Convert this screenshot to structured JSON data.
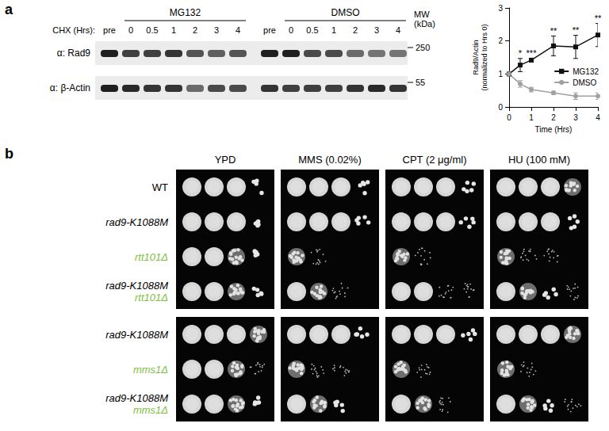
{
  "chart_data": {
    "type": "line",
    "xlabel": "Time (Hrs)",
    "ylabel": "Rad9/Actin (normalized to Hrs 0)",
    "x": [
      0,
      0.5,
      1,
      2,
      3,
      4
    ],
    "series": [
      {
        "name": "MG132",
        "color": "#111111",
        "marker": "square",
        "values": [
          1,
          1.27,
          1.42,
          1.85,
          1.82,
          2.18
        ],
        "errors": [
          0,
          0.2,
          0.05,
          0.3,
          0.35,
          0.35
        ]
      },
      {
        "name": "DMSO",
        "color": "#a0a0a0",
        "marker": "circle",
        "values": [
          1,
          0.7,
          0.53,
          0.43,
          0.33,
          0.33
        ],
        "errors": [
          0,
          0.1,
          0.07,
          0.05,
          0.1,
          0.1
        ]
      }
    ],
    "annotations": [
      {
        "series": "MG132",
        "x": 0.5,
        "text": "*"
      },
      {
        "series": "MG132",
        "x": 1,
        "text": "***"
      },
      {
        "series": "MG132",
        "x": 2,
        "text": "**"
      },
      {
        "series": "MG132",
        "x": 3,
        "text": "**"
      },
      {
        "series": "MG132",
        "x": 4,
        "text": "**"
      }
    ],
    "xlim": [
      0,
      4
    ],
    "xticks": [
      0,
      1,
      2,
      3,
      4
    ],
    "ylim": [
      0,
      3
    ],
    "yticks": [
      0,
      1,
      2,
      3
    ],
    "grid": false,
    "legend": "right"
  },
  "blot": {
    "label": "a",
    "row_header": "CHX (Hrs):",
    "mw_header": "MW (kDa)",
    "groups": [
      {
        "name": "MG132",
        "lanes": [
          "pre",
          "0",
          "0.5",
          "1",
          "2",
          "3",
          "4"
        ]
      },
      {
        "name": "DMSO",
        "lanes": [
          "pre",
          "0",
          "0.5",
          "1",
          "2",
          "3",
          "4"
        ]
      }
    ],
    "blots": [
      {
        "antibody": "α: Rad9",
        "mw": 250,
        "intensity": [
          0.95,
          0.8,
          0.8,
          0.85,
          0.7,
          0.65,
          0.7,
          0.95,
          0.95,
          0.75,
          0.75,
          0.6,
          0.55,
          0.55
        ]
      },
      {
        "antibody": "α: β-Actin",
        "mw": 55,
        "intensity": [
          0.95,
          0.9,
          0.85,
          0.85,
          0.6,
          0.75,
          0.75,
          0.85,
          0.8,
          0.8,
          0.8,
          0.85,
          0.9,
          0.85
        ]
      }
    ]
  },
  "spot_assay": {
    "label": "b",
    "conditions": [
      "YPD",
      "MMS (0.02%)",
      "CPT (2 μg/ml)",
      "HU (100 mM)"
    ],
    "groups": [
      {
        "rows": [
          {
            "strain": [
              {
                "text": "WT",
                "color": "#000000",
                "italic": false
              }
            ],
            "growth": [
              [
                4,
                4,
                4,
                2
              ],
              [
                4,
                4,
                4,
                2
              ],
              [
                4,
                4,
                4,
                2
              ],
              [
                4,
                4,
                4,
                3
              ]
            ]
          },
          {
            "strain": [
              {
                "text": "rad9-K1088M",
                "color": "#000000",
                "italic": true
              }
            ],
            "growth": [
              [
                4,
                4,
                4,
                2
              ],
              [
                4,
                4,
                4,
                2
              ],
              [
                4,
                4,
                4,
                2
              ],
              [
                4,
                4,
                4,
                2
              ]
            ]
          },
          {
            "strain": [
              {
                "text": "rtt101Δ",
                "color": "#7dbf3f",
                "italic": true
              }
            ],
            "growth": [
              [
                4,
                4,
                3,
                2
              ],
              [
                3,
                1,
                0,
                0
              ],
              [
                3,
                1,
                0,
                0
              ],
              [
                3,
                1,
                1,
                0
              ]
            ]
          },
          {
            "strain": [
              {
                "text": "rad9-K1088M",
                "color": "#000000",
                "italic": true
              },
              {
                "text": "rtt101Δ",
                "color": "#7dbf3f",
                "italic": true
              }
            ],
            "growth": [
              [
                4,
                4,
                3,
                2
              ],
              [
                4,
                3,
                1,
                0
              ],
              [
                4,
                4,
                1,
                1
              ],
              [
                4,
                3,
                2,
                1
              ]
            ]
          }
        ]
      },
      {
        "rows": [
          {
            "strain": [
              {
                "text": "rad9-K1088M",
                "color": "#000000",
                "italic": true
              }
            ],
            "growth": [
              [
                4,
                4,
                4,
                3
              ],
              [
                4,
                4,
                4,
                2
              ],
              [
                4,
                4,
                4,
                2
              ],
              [
                4,
                4,
                4,
                3
              ]
            ]
          },
          {
            "strain": [
              {
                "text": "mms1Δ",
                "color": "#7dbf3f",
                "italic": true
              }
            ],
            "growth": [
              [
                4,
                4,
                3,
                1
              ],
              [
                3,
                1,
                1,
                0
              ],
              [
                3,
                1,
                0,
                0
              ],
              [
                3,
                1,
                0,
                0
              ]
            ]
          },
          {
            "strain": [
              {
                "text": "rad9-K1088M",
                "color": "#000000",
                "italic": true
              },
              {
                "text": "mms1Δ",
                "color": "#7dbf3f",
                "italic": true
              }
            ],
            "growth": [
              [
                4,
                4,
                3,
                2
              ],
              [
                4,
                3,
                2,
                0
              ],
              [
                4,
                3,
                1,
                0
              ],
              [
                4,
                3,
                2,
                1
              ]
            ]
          }
        ]
      }
    ]
  }
}
